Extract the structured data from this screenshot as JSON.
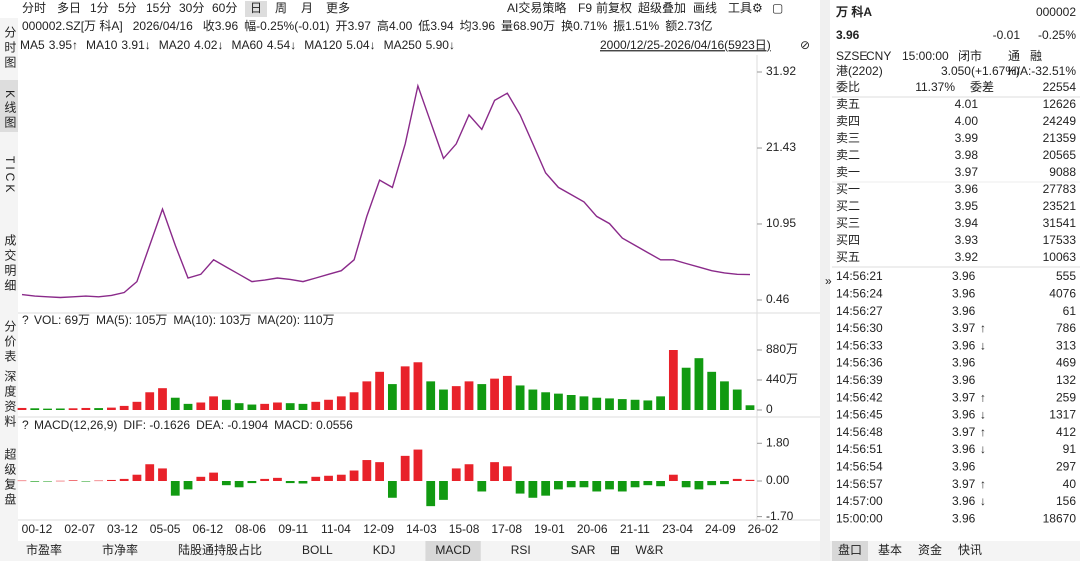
{
  "toolbar": {
    "periods": [
      "分时",
      "多日",
      "1分",
      "5分",
      "15分",
      "30分",
      "60分",
      "日",
      "周",
      "月",
      "更多"
    ],
    "selected": 7,
    "tools": [
      "AI交易策略",
      "F9",
      "前复权",
      "超级叠加",
      "画线",
      "工具"
    ]
  },
  "info": {
    "security": "000002.SZ[万 科A]",
    "date": "2026/04/16",
    "fields": [
      {
        "label": "收",
        "value": "3.96",
        "color": "#119a11"
      },
      {
        "label": "幅",
        "value": "-0.25%(-0.01)",
        "color": "#119a11"
      },
      {
        "label": "开",
        "value": "3.97",
        "color": "#222222"
      },
      {
        "label": "高",
        "value": "4.00",
        "color": "#e8222a"
      },
      {
        "label": "低",
        "value": "3.94",
        "color": "#119a11"
      },
      {
        "label": "均",
        "value": "3.96",
        "color": "#119a11"
      },
      {
        "label": "量",
        "value": "68.90万",
        "color": "#222222"
      },
      {
        "label": "换",
        "value": "0.71%",
        "color": "#222222"
      },
      {
        "label": "振",
        "value": "1.51%",
        "color": "#222222"
      },
      {
        "label": "额",
        "value": "2.73亿",
        "color": "#222222"
      }
    ]
  },
  "ma_legend": {
    "items": [
      {
        "label": "MA5",
        "value": "3.95↑",
        "color": "#e8222a"
      },
      {
        "label": "MA10",
        "value": "3.91↓",
        "color": "#4a6fa5"
      },
      {
        "label": "MA20",
        "value": "4.02↓",
        "color": "#1b4fd6"
      },
      {
        "label": "MA60",
        "value": "4.54↓",
        "color": "#10b0c0"
      },
      {
        "label": "MA120",
        "value": "5.04↓",
        "color": "#20a020"
      },
      {
        "label": "MA250",
        "value": "5.90↓",
        "color": "#c020c0"
      }
    ],
    "range": "2000/12/25-2026/04/16(5923日)"
  },
  "side_tabs": [
    "分时图",
    "K线图",
    "TICK",
    "成交明细",
    "分价表",
    "深度资料",
    "超级复盘"
  ],
  "side_selected": 1,
  "price_chart": {
    "type": "line",
    "color": "#8a2a8a",
    "ylim": [
      0.46,
      31.92
    ],
    "yticks": [
      31.92,
      21.43,
      10.95,
      0.46
    ],
    "values": [
      1.2,
      1.0,
      0.9,
      0.8,
      0.9,
      1.0,
      0.9,
      1.1,
      1.5,
      3.0,
      8,
      13,
      8,
      3.5,
      4,
      6,
      5,
      4,
      3,
      3.2,
      3.5,
      3.3,
      3,
      3.5,
      4,
      4.5,
      6,
      12,
      17,
      16,
      22,
      30,
      25,
      20,
      22,
      26,
      24,
      28,
      29,
      26,
      22,
      18,
      16,
      15,
      14,
      12,
      11,
      9,
      8,
      7,
      6,
      6,
      5.5,
      5,
      4.5,
      4.2,
      4,
      3.96
    ]
  },
  "x_labels": [
    "00-12",
    "02-07",
    "03-12",
    "05-05",
    "06-12",
    "08-06",
    "09-11",
    "11-04",
    "12-09",
    "14-03",
    "15-08",
    "17-08",
    "19-01",
    "20-06",
    "21-11",
    "23-04",
    "24-09",
    "26-02"
  ],
  "volume_chart": {
    "type": "bar",
    "header": [
      {
        "text": "VOL: 69万",
        "color": "#222222"
      },
      {
        "text": "MA(5): 105万",
        "color": "#222222"
      },
      {
        "text": "MA(10): 103万",
        "color": "#e8222a"
      },
      {
        "text": "MA(20): 110万",
        "color": "#1b4fd6"
      }
    ],
    "ylim": [
      0,
      1100
    ],
    "yticks": [
      {
        "value": 880,
        "label": "880万"
      },
      {
        "value": 440,
        "label": "440万"
      },
      0
    ],
    "values": [
      30,
      25,
      20,
      22,
      25,
      30,
      28,
      35,
      60,
      120,
      260,
      320,
      180,
      90,
      110,
      200,
      150,
      100,
      80,
      90,
      110,
      100,
      90,
      120,
      150,
      200,
      260,
      420,
      560,
      380,
      640,
      700,
      420,
      300,
      350,
      420,
      380,
      460,
      500,
      360,
      300,
      260,
      240,
      220,
      200,
      180,
      170,
      160,
      150,
      140,
      200,
      880,
      620,
      760,
      560,
      420,
      300,
      69
    ]
  },
  "macd_chart": {
    "type": "bar",
    "header": [
      {
        "text": "MACD(12,26,9)",
        "color": "#222222"
      },
      {
        "text": "DIF: -0.1626",
        "color": "#222222"
      },
      {
        "text": "DEA: -0.1904",
        "color": "#e8222a"
      },
      {
        "text": "MACD: 0.0556",
        "color": "#1b8f8f"
      }
    ],
    "ylim": [
      -2.1,
      2.1
    ],
    "yticks": [
      {
        "value": 1.8,
        "label": "1.80"
      },
      {
        "value": 0,
        "label": "0.00"
      },
      {
        "value": -1.7,
        "label": "-1.70"
      }
    ],
    "values": [
      0.02,
      -0.03,
      -0.02,
      0.01,
      0.03,
      -0.02,
      0.02,
      0.05,
      0.1,
      0.3,
      0.8,
      0.6,
      -0.7,
      -0.4,
      0.2,
      0.4,
      -0.2,
      -0.3,
      -0.1,
      0.1,
      0.15,
      -0.1,
      -0.12,
      0.2,
      0.25,
      0.3,
      0.5,
      1.0,
      0.9,
      -0.8,
      1.2,
      1.5,
      -1.2,
      -0.9,
      0.6,
      0.8,
      -0.5,
      0.9,
      0.7,
      -0.6,
      -0.8,
      -0.7,
      -0.4,
      -0.3,
      -0.3,
      -0.5,
      -0.4,
      -0.5,
      -0.3,
      -0.2,
      -0.25,
      0.3,
      -0.3,
      -0.4,
      -0.2,
      -0.15,
      0.1,
      0.0556
    ]
  },
  "bottom_tabs": [
    "市盈率",
    "市净率",
    "陆股通持股占比",
    "BOLL",
    "KDJ",
    "MACD",
    "RSI",
    "SAR",
    "W&R"
  ],
  "bottom_selected": 5,
  "quote": {
    "name": "万 科A",
    "code": "000002",
    "price": "3.96",
    "change": "-0.01",
    "pct": "-0.25%",
    "status": [
      "SZSE",
      "CNY",
      "15:00:00",
      "闭市",
      "通",
      "融"
    ],
    "hk_label": "港(2202)",
    "hk_value": "3.050(+1.67%)",
    "ha": "H/A:-32.51%",
    "wb_label": "委比",
    "wb_value": "11.37%",
    "wc_label": "委差",
    "wc_value": "22554"
  },
  "order_book": [
    [
      "卖五",
      "4.01",
      "12626",
      "#e8222a"
    ],
    [
      "卖四",
      "4.00",
      "24249",
      "#e8222a"
    ],
    [
      "卖三",
      "3.99",
      "21359",
      "#e8222a"
    ],
    [
      "卖二",
      "3.98",
      "20565",
      "#e8222a"
    ],
    [
      "卖一",
      "3.97",
      "9088",
      "#222222"
    ],
    [
      "买一",
      "3.96",
      "27783",
      "#119a11"
    ],
    [
      "买二",
      "3.95",
      "23521",
      "#119a11"
    ],
    [
      "买三",
      "3.94",
      "31541",
      "#119a11"
    ],
    [
      "买四",
      "3.93",
      "17533",
      "#119a11"
    ],
    [
      "买五",
      "3.92",
      "10063",
      "#119a11"
    ]
  ],
  "ticks": [
    [
      "14:56:21",
      "3.96",
      "",
      "555",
      "#119a11"
    ],
    [
      "14:56:24",
      "3.96",
      "",
      "4076",
      "#119a11"
    ],
    [
      "14:56:27",
      "3.96",
      "",
      "61",
      "#119a11"
    ],
    [
      "14:56:30",
      "3.97",
      "↑",
      "786",
      "#222222"
    ],
    [
      "14:56:33",
      "3.96",
      "↓",
      "313",
      "#119a11"
    ],
    [
      "14:56:36",
      "3.96",
      "",
      "469",
      "#119a11"
    ],
    [
      "14:56:39",
      "3.96",
      "",
      "132",
      "#119a11"
    ],
    [
      "14:56:42",
      "3.97",
      "↑",
      "259",
      "#222222"
    ],
    [
      "14:56:45",
      "3.96",
      "↓",
      "1317",
      "#119a11"
    ],
    [
      "14:56:48",
      "3.97",
      "↑",
      "412",
      "#222222"
    ],
    [
      "14:56:51",
      "3.96",
      "↓",
      "91",
      "#119a11"
    ],
    [
      "14:56:54",
      "3.96",
      "",
      "297",
      "#119a11"
    ],
    [
      "14:56:57",
      "3.97",
      "↑",
      "40",
      "#222222"
    ],
    [
      "14:57:00",
      "3.96",
      "↓",
      "156",
      "#119a11"
    ],
    [
      "15:00:00",
      "3.96",
      "",
      "18670",
      "#119a11"
    ]
  ],
  "panel_tabs": [
    "盘口",
    "基本",
    "资金",
    "快讯"
  ]
}
